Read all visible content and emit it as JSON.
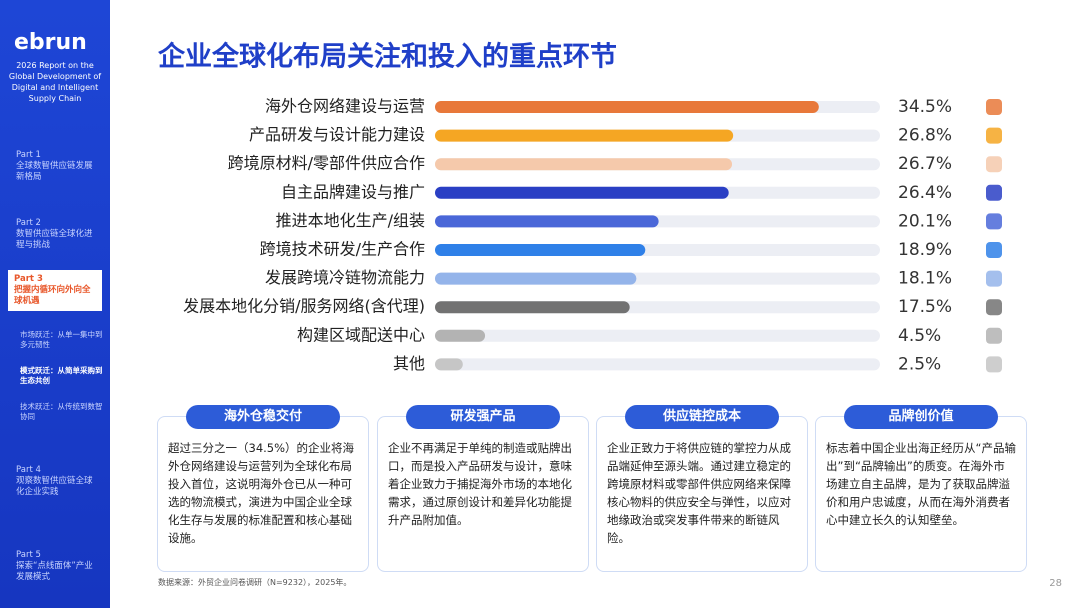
{
  "brand": "ebrun",
  "report_title": "2026 Report on the Global Development of Digital and Intelligent Supply Chain",
  "nav": [
    {
      "part": "Part 1",
      "title": "全球数智供应链发展新格局"
    },
    {
      "part": "Part 2",
      "title": "数智供应链全球化进程与挑战"
    },
    {
      "part": "Part 3",
      "title": "把握内循环向外向全球机遇"
    },
    {
      "part": "Part 4",
      "title": "观察数智供应链全球化企业实践"
    },
    {
      "part": "Part 5",
      "title": "探索“点线面体”产业发展模式"
    }
  ],
  "subnav": [
    "市场跃迁：从单一集中到多元韧性",
    "模式跃迁：从简单采购到生态共创",
    "技术跃迁：从传统到数智协同"
  ],
  "chart_data": {
    "type": "bar",
    "orientation": "horizontal",
    "title": "企业全球化布局关注和投入的重点环节",
    "categories": [
      "海外仓网络建设与运营",
      "产品研发与设计能力建设",
      "跨境原材料/零部件供应合作",
      "自主品牌建设与推广",
      "推进本地化生产/组装",
      "跨境技术研发/生产合作",
      "发展跨境冷链物流能力",
      "发展本地化分销/服务网络(含代理)",
      "构建区域配送中心",
      "其他"
    ],
    "values": [
      34.5,
      26.8,
      26.7,
      26.4,
      20.1,
      18.9,
      18.1,
      17.5,
      4.5,
      2.5
    ],
    "value_labels": [
      "34.5%",
      "26.8%",
      "26.7%",
      "26.4%",
      "20.1%",
      "18.9%",
      "18.1%",
      "17.5%",
      "4.5%",
      "2.5%"
    ],
    "colors": [
      "#e8783a",
      "#f5a623",
      "#f5c9ab",
      "#2a3fc4",
      "#4a67d8",
      "#2f80e8",
      "#94b4ea",
      "#727272",
      "#b3b3b3",
      "#c6c6c6"
    ],
    "xlim": [
      0,
      40
    ]
  },
  "cards": [
    {
      "title": "海外仓稳交付",
      "body": "超过三分之一（34.5%）的企业将海外仓网络建设与运营列为全球化布局投入首位，这说明海外仓已从一种可选的物流模式，演进为中国企业全球化生存与发展的标准配置和核心基础设施。"
    },
    {
      "title": "研发强产品",
      "body": "企业不再满足于单纯的制造或贴牌出口，而是投入产品研发与设计，意味着企业致力于捕捉海外市场的本地化需求，通过原创设计和差异化功能提升产品附加值。"
    },
    {
      "title": "供应链控成本",
      "body": "企业正致力于将供应链的掌控力从成品端延伸至源头端。通过建立稳定的跨境原材料或零部件供应网络来保障核心物料的供应安全与弹性，以应对地缘政治或突发事件带来的断链风险。"
    },
    {
      "title": "品牌创价值",
      "body": "标志着中国企业出海正经历从“产品输出”到“品牌输出”的质变。在海外市场建立自主品牌，是为了获取品牌溢价和用户忠诚度，从而在海外消费者心中建立长久的认知壁垒。"
    }
  ],
  "source": "数据来源：外贸企业问卷调研（N=9232），2025年。",
  "page_number": "28"
}
